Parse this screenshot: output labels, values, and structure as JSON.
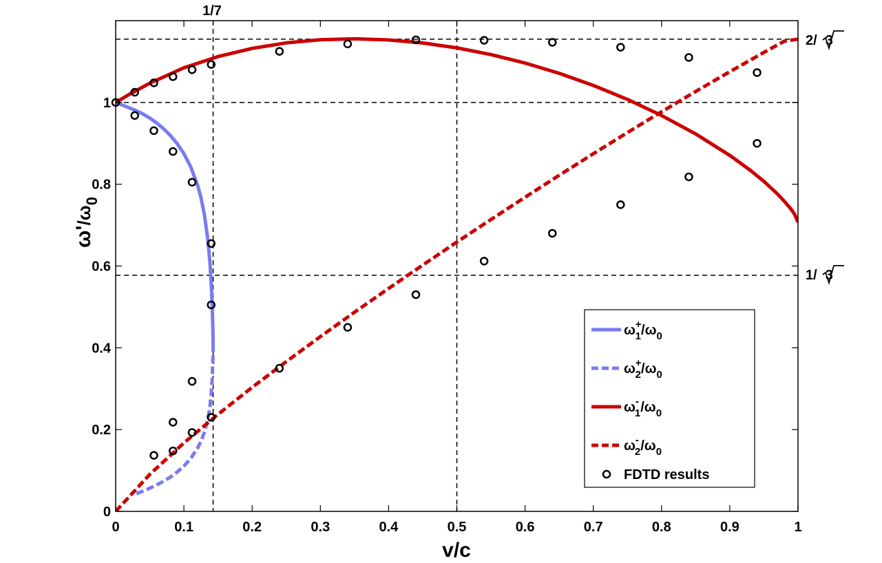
{
  "chart_data": {
    "type": "line",
    "xlabel": "v/c",
    "ylabel": {
      "base": "ω'",
      "sub": "0",
      "sep": "/ω"
    },
    "xlim": [
      0,
      1
    ],
    "ylim": [
      0,
      1.2
    ],
    "grid": false,
    "legend_position": "bottom-right",
    "x_ticks": [
      0,
      0.1,
      0.2,
      0.3,
      0.4,
      0.5,
      0.6,
      0.7,
      0.8,
      0.9,
      1
    ],
    "x_tick_labels": [
      "0",
      "0.1",
      "0.2",
      "0.3",
      "0.4",
      "0.5",
      "0.6",
      "0.7",
      "0.8",
      "0.9",
      "1"
    ],
    "y_ticks": [
      0,
      0.2,
      0.4,
      0.6,
      0.8,
      1.0
    ],
    "y_tick_labels": [
      "0",
      "0.2",
      "0.4",
      "0.6",
      "0.8",
      "1"
    ],
    "annotations": {
      "top": "1/7",
      "right_upper": {
        "prefix": "2/",
        "radicand": "3"
      },
      "right_lower": {
        "prefix": "1/",
        "radicand": "3"
      }
    },
    "reference_lines": {
      "vertical": [
        0.142857,
        0.5
      ],
      "horizontal": [
        1.1547,
        1.0,
        0.57735
      ]
    },
    "series": [
      {
        "key": "w1p",
        "name": {
          "base": "ω",
          "sup": "+",
          "sub": "1",
          "tail": "/ω",
          "tail_sub": "0"
        },
        "color": "#7b7bf0",
        "dash": false,
        "x": [
          0,
          0.01,
          0.02,
          0.03,
          0.04,
          0.05,
          0.06,
          0.07,
          0.08,
          0.09,
          0.1,
          0.11,
          0.12,
          0.125,
          0.13,
          0.135,
          0.138,
          0.14,
          0.1415,
          0.1425,
          0.142857
        ],
        "y": [
          1.0,
          0.9935,
          0.9868,
          0.98,
          0.9718,
          0.9617,
          0.9499,
          0.936,
          0.9195,
          0.8996,
          0.8748,
          0.8426,
          0.7979,
          0.7671,
          0.7261,
          0.6657,
          0.6111,
          0.5598,
          0.5043,
          0.4437,
          0.4082
        ]
      },
      {
        "key": "w2p",
        "name": {
          "base": "ω",
          "sup": "+",
          "sub": "2",
          "tail": "/ω",
          "tail_sub": "0"
        },
        "color": "#7b7bf0",
        "dash": true,
        "x": [
          0.142857,
          0.1425,
          0.1415,
          0.14,
          0.138,
          0.135,
          0.13,
          0.125,
          0.12,
          0.11,
          0.1,
          0.09,
          0.08,
          0.07,
          0.06,
          0.05,
          0.04,
          0.03
        ],
        "y": [
          0.4082,
          0.3731,
          0.3242,
          0.2855,
          0.2548,
          0.2247,
          0.193,
          0.1713,
          0.1546,
          0.1294,
          0.1108,
          0.096,
          0.0838,
          0.0735,
          0.0646,
          0.0568,
          0.0496,
          0.043
        ]
      },
      {
        "key": "w1m",
        "name": {
          "base": "ω",
          "sup": "-",
          "sub": "1",
          "tail": "/ω",
          "tail_sub": "0"
        },
        "color": "#cc0000",
        "dash": false,
        "x": [
          0,
          0.02,
          0.05,
          0.1,
          0.15,
          0.2,
          0.25,
          0.3,
          0.35,
          0.4,
          0.45,
          0.5,
          0.55,
          0.6,
          0.65,
          0.7,
          0.75,
          0.8,
          0.85,
          0.9,
          0.93,
          0.95,
          0.97,
          0.98,
          0.99,
          0.995,
          1.0
        ],
        "y": [
          1.0,
          1.0198,
          1.0472,
          1.0847,
          1.1121,
          1.1321,
          1.1456,
          1.1533,
          1.1556,
          1.1529,
          1.1454,
          1.1335,
          1.1171,
          1.0963,
          1.0712,
          1.0416,
          1.0074,
          0.9681,
          0.923,
          0.8706,
          0.8342,
          0.8071,
          0.776,
          0.7582,
          0.7387,
          0.7267,
          0.7071
        ]
      },
      {
        "key": "w2m",
        "name": {
          "base": "ω",
          "sup": "-",
          "sub": "2",
          "tail": "/ω",
          "tail_sub": "0"
        },
        "color": "#cc0000",
        "dash": true,
        "x": [
          0,
          0.05,
          0.1,
          0.15,
          0.2,
          0.25,
          0.3,
          0.35,
          0.4,
          0.45,
          0.5,
          0.55,
          0.6,
          0.65,
          0.7,
          0.75,
          0.8,
          0.85,
          0.9,
          0.95,
          0.98,
          1.0
        ],
        "y": [
          0,
          0.0905,
          0.1674,
          0.2373,
          0.3032,
          0.3663,
          0.4274,
          0.4869,
          0.5451,
          0.6023,
          0.6585,
          0.7138,
          0.7682,
          0.8218,
          0.8745,
          0.9263,
          0.9771,
          1.0268,
          1.0752,
          1.1223,
          1.1499,
          1.1547
        ]
      }
    ],
    "fdtd": {
      "name": "FDTD results",
      "x": [
        0,
        0.028,
        0.056,
        0.084,
        0.112,
        0.14,
        0.24,
        0.34,
        0.44,
        0.54,
        0.64,
        0.74,
        0.84,
        0.94,
        0.028,
        0.056,
        0.084,
        0.112,
        0.14,
        0.14,
        0.112,
        0.084,
        0.056,
        0.084,
        0.112,
        0.14,
        0.24,
        0.34,
        0.44,
        0.54,
        0.64,
        0.74,
        0.84,
        0.94
      ],
      "y": [
        1.0,
        1.025,
        1.048,
        1.063,
        1.08,
        1.093,
        1.125,
        1.143,
        1.153,
        1.152,
        1.147,
        1.135,
        1.11,
        1.073,
        0.968,
        0.931,
        0.88,
        0.805,
        0.655,
        0.505,
        0.318,
        0.218,
        0.137,
        0.148,
        0.193,
        0.23,
        0.35,
        0.45,
        0.53,
        0.612,
        0.68,
        0.75,
        0.818,
        0.9
      ]
    }
  }
}
